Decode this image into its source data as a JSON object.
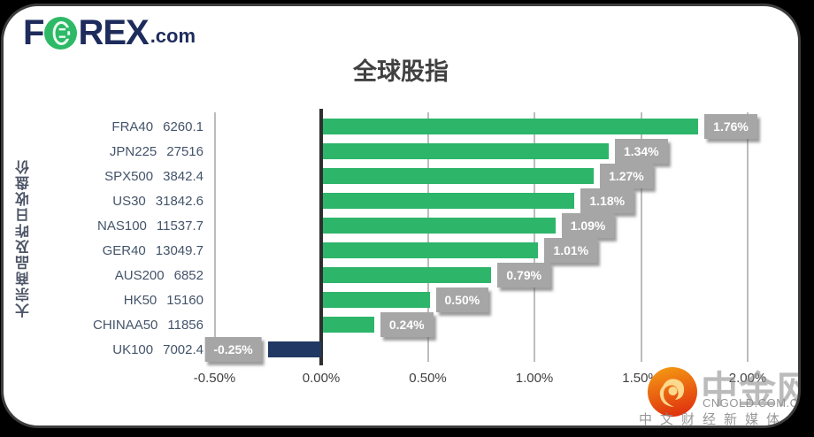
{
  "brand": {
    "logo_f": "F",
    "logo_rex": "REX",
    "logo_com": ".com",
    "navy": "#1e2c5c",
    "green": "#2db966"
  },
  "chart_data": {
    "type": "bar",
    "orientation": "horizontal",
    "title": "全球股指",
    "ylabel": "大宗商品及昨日收盘价",
    "categories": [
      "FRA40",
      "JPN225",
      "SPX500",
      "US30",
      "NAS100",
      "GER40",
      "AUS200",
      "HK50",
      "CHINAA50",
      "UK100"
    ],
    "close_prices": [
      "6260.1",
      "27516",
      "3842.4",
      "31842.6",
      "11537.7",
      "13049.7",
      "6852",
      "15160",
      "11856",
      "7002.4"
    ],
    "values": [
      1.76,
      1.34,
      1.27,
      1.18,
      1.09,
      1.01,
      0.79,
      0.5,
      0.24,
      -0.25
    ],
    "labels": [
      "1.76%",
      "1.34%",
      "1.27%",
      "1.18%",
      "1.09%",
      "1.01%",
      "0.79%",
      "0.50%",
      "0.24%",
      "-0.25%"
    ],
    "x_ticks": [
      "-0.50%",
      "0.00%",
      "0.50%",
      "1.00%",
      "1.50%",
      "2.00%"
    ],
    "x_tick_values": [
      -0.5,
      0,
      0.5,
      1,
      1.5,
      2
    ],
    "xlim": [
      -0.5,
      2.0
    ],
    "grid": true,
    "legend": "none",
    "colors": {
      "positive_bar": "#2db56a",
      "negative_bar": "#1f3864",
      "label_box": "#a6a6a6",
      "label_text": "#ffffff",
      "gridline": "#bcbcbc",
      "zero_line": "#2e2e2e",
      "axis_text": "#404040",
      "category_text": "#44546a"
    }
  },
  "watermark": {
    "site_name": "中金网",
    "site_url": "CNGOLD.COM.CN",
    "tagline": "中文财经新媒体"
  }
}
